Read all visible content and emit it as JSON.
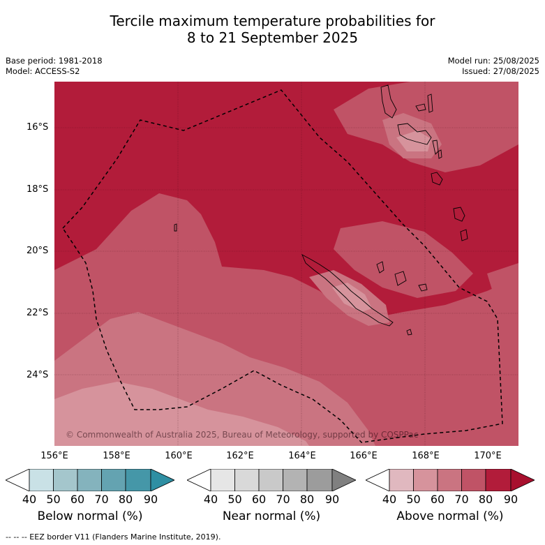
{
  "title_line1": "Tercile maximum temperature probabilities for",
  "title_line2": "8 to 21 September 2025",
  "meta_left": {
    "base_period": "Base period: 1981-2018",
    "model": "Model: ACCESS-S2"
  },
  "meta_right": {
    "model_run": "Model run: 25/08/2025",
    "issued": "Issued: 27/08/2025"
  },
  "map": {
    "lat_labels": [
      "16°S",
      "18°S",
      "20°S",
      "22°S",
      "24°S"
    ],
    "lon_labels": [
      "156°E",
      "158°E",
      "160°E",
      "162°E",
      "164°E",
      "166°E",
      "168°E",
      "170°E"
    ],
    "copyright": "© Commonwealth of Australia 2025, Bureau of Meteorology, supported by COSPPac"
  },
  "colorbars": [
    {
      "title": "Below normal (%)",
      "ticks": [
        "40",
        "50",
        "60",
        "70",
        "80",
        "90"
      ],
      "colors": [
        "#ffffff",
        "#c9e1e6",
        "#a4c6cc",
        "#84b3bd",
        "#64a3b1",
        "#4597a8",
        "#2e8fa3"
      ]
    },
    {
      "title": "Near normal (%)",
      "ticks": [
        "40",
        "50",
        "60",
        "70",
        "80",
        "90"
      ],
      "colors": [
        "#ffffff",
        "#e6e6e6",
        "#d9d9d9",
        "#c9c9c9",
        "#b3b3b3",
        "#9c9c9c",
        "#808080"
      ]
    },
    {
      "title": "Above normal (%)",
      "ticks": [
        "40",
        "50",
        "60",
        "70",
        "80",
        "90"
      ],
      "colors": [
        "#ffffff",
        "#e0b8bf",
        "#d6939c",
        "#ca7481",
        "#c05366",
        "#b21c3a",
        "#a8102e"
      ]
    }
  ],
  "footer": "--  --  -- EEZ border V11 (Flanders Marine Institute, 2019)."
}
